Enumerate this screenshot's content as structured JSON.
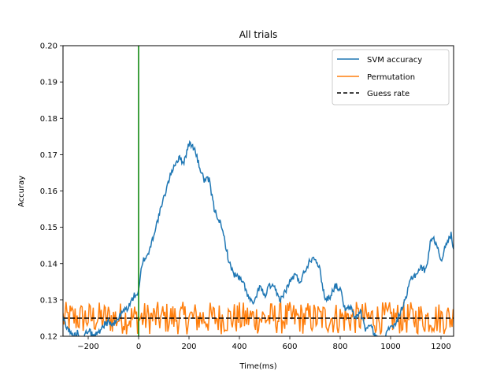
{
  "chart_data": {
    "type": "line",
    "title": "All trials",
    "xlabel": "Time(ms)",
    "ylabel": "Accuray",
    "xlim": [
      -300,
      1250
    ],
    "ylim": [
      0.12,
      0.2
    ],
    "xticks": [
      -200,
      0,
      200,
      400,
      600,
      800,
      1000,
      1200
    ],
    "xtick_labels": [
      "−200",
      "0",
      "200",
      "400",
      "600",
      "800",
      "1000",
      "1200"
    ],
    "yticks": [
      0.12,
      0.13,
      0.14,
      0.15,
      0.16,
      0.17,
      0.18,
      0.19,
      0.2
    ],
    "ytick_labels": [
      "0.12",
      "0.13",
      "0.14",
      "0.15",
      "0.16",
      "0.17",
      "0.18",
      "0.19",
      "0.20"
    ],
    "grid": false,
    "legend_position": "top-right",
    "vline": {
      "x": 0,
      "color": "#008000"
    },
    "series": [
      {
        "name": "SVM accuracy",
        "color": "#1f77b4",
        "style": "solid",
        "x": [
          -300,
          -280,
          -260,
          -240,
          -220,
          -200,
          -180,
          -160,
          -140,
          -120,
          -100,
          -80,
          -60,
          -40,
          -20,
          0,
          10,
          20,
          40,
          60,
          80,
          100,
          120,
          140,
          160,
          180,
          200,
          220,
          240,
          260,
          280,
          300,
          320,
          340,
          360,
          380,
          400,
          420,
          440,
          460,
          480,
          500,
          520,
          540,
          560,
          580,
          600,
          620,
          640,
          660,
          680,
          700,
          720,
          740,
          760,
          780,
          800,
          820,
          840,
          860,
          880,
          900,
          920,
          940,
          960,
          980,
          1000,
          1020,
          1040,
          1060,
          1080,
          1100,
          1120,
          1140,
          1160,
          1180,
          1200,
          1220,
          1240,
          1250
        ],
        "values": [
          0.125,
          0.122,
          0.12,
          0.121,
          0.119,
          0.122,
          0.12,
          0.121,
          0.123,
          0.124,
          0.123,
          0.125,
          0.127,
          0.128,
          0.131,
          0.132,
          0.138,
          0.141,
          0.143,
          0.148,
          0.153,
          0.158,
          0.163,
          0.167,
          0.169,
          0.168,
          0.173,
          0.172,
          0.167,
          0.163,
          0.163,
          0.155,
          0.152,
          0.147,
          0.14,
          0.137,
          0.136,
          0.134,
          0.13,
          0.129,
          0.134,
          0.131,
          0.134,
          0.133,
          0.13,
          0.132,
          0.135,
          0.137,
          0.135,
          0.138,
          0.141,
          0.142,
          0.138,
          0.13,
          0.131,
          0.134,
          0.133,
          0.127,
          0.128,
          0.125,
          0.127,
          0.122,
          0.123,
          0.12,
          0.118,
          0.12,
          0.123,
          0.123,
          0.127,
          0.13,
          0.136,
          0.137,
          0.139,
          0.138,
          0.147,
          0.146,
          0.141,
          0.145,
          0.148,
          0.144
        ]
      },
      {
        "name": "Permutation",
        "color": "#ff7f0e",
        "style": "solid",
        "baseline": 0.125,
        "spread": 0.0045,
        "x_step": 4
      },
      {
        "name": "Guess rate",
        "color": "#000000",
        "style": "dashed",
        "value": 0.125
      }
    ]
  }
}
